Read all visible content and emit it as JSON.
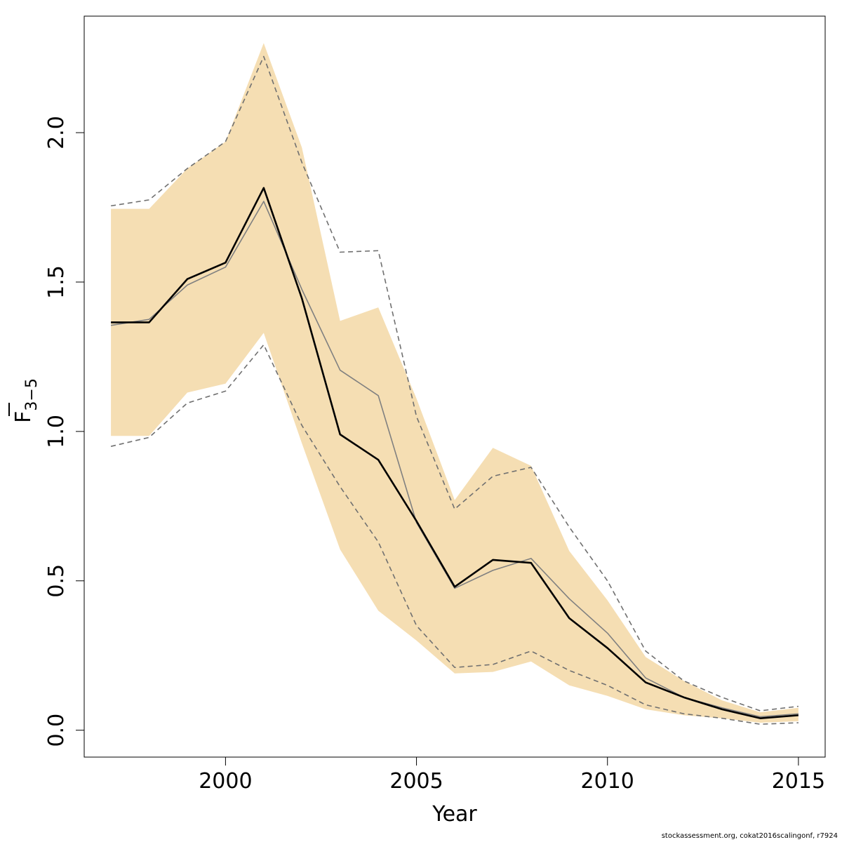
{
  "chart_data": {
    "type": "line",
    "xlabel": "Year",
    "ylabel_base": "F",
    "ylabel_sub": "3−5",
    "xlim": [
      1996.3,
      2015.7
    ],
    "ylim": [
      -0.09,
      2.39
    ],
    "x_ticks": [
      2000,
      2005,
      2010,
      2015
    ],
    "x_tick_labels": [
      "2000",
      "2005",
      "2010",
      "2015"
    ],
    "y_ticks": [
      0.0,
      0.5,
      1.0,
      1.5,
      2.0
    ],
    "y_tick_labels": [
      "0.0",
      "0.5",
      "1.0",
      "1.5",
      "2.0"
    ],
    "x": [
      1997,
      1998,
      1999,
      2000,
      2001,
      2002,
      2003,
      2004,
      2005,
      2006,
      2007,
      2008,
      2009,
      2010,
      2011,
      2012,
      2013,
      2014,
      2015
    ],
    "band": {
      "color": "#f5deb3",
      "upper": [
        1.745,
        1.745,
        1.88,
        1.97,
        2.3,
        1.95,
        1.37,
        1.415,
        1.11,
        0.77,
        0.945,
        0.885,
        0.6,
        0.435,
        0.245,
        0.165,
        0.1,
        0.06,
        0.075
      ],
      "lower": [
        0.985,
        0.985,
        1.13,
        1.16,
        1.33,
        0.96,
        0.605,
        0.4,
        0.3,
        0.19,
        0.195,
        0.23,
        0.15,
        0.115,
        0.07,
        0.05,
        0.04,
        0.025,
        0.03
      ]
    },
    "series": [
      {
        "values": [
          1.365,
          1.365,
          1.51,
          1.565,
          1.815,
          1.445,
          0.99,
          0.905,
          0.7,
          0.48,
          0.57,
          0.56,
          0.375,
          0.275,
          0.16,
          0.11,
          0.07,
          0.04,
          0.05
        ],
        "color": "#000000",
        "style": "solid-thick"
      },
      {
        "values": [
          1.355,
          1.375,
          1.49,
          1.55,
          1.77,
          1.475,
          1.205,
          1.12,
          0.695,
          0.475,
          0.535,
          0.575,
          0.44,
          0.325,
          0.175,
          0.11,
          0.075,
          0.045,
          0.055
        ],
        "color": "#808080",
        "style": "solid-thin"
      },
      {
        "values": [
          1.755,
          1.775,
          1.88,
          1.97,
          2.255,
          1.9,
          1.6,
          1.605,
          1.05,
          0.74,
          0.85,
          0.88,
          0.68,
          0.5,
          0.265,
          0.165,
          0.11,
          0.065,
          0.08
        ],
        "color": "#707070",
        "style": "dashed"
      },
      {
        "values": [
          0.95,
          0.98,
          1.095,
          1.135,
          1.29,
          1.02,
          0.815,
          0.63,
          0.35,
          0.21,
          0.22,
          0.265,
          0.2,
          0.15,
          0.085,
          0.055,
          0.04,
          0.02,
          0.025
        ],
        "color": "#707070",
        "style": "dashed"
      }
    ],
    "grid": false,
    "legend": "none"
  },
  "footer": {
    "note": "stockassessment.org, cokat2016scalingonf, r7924"
  }
}
